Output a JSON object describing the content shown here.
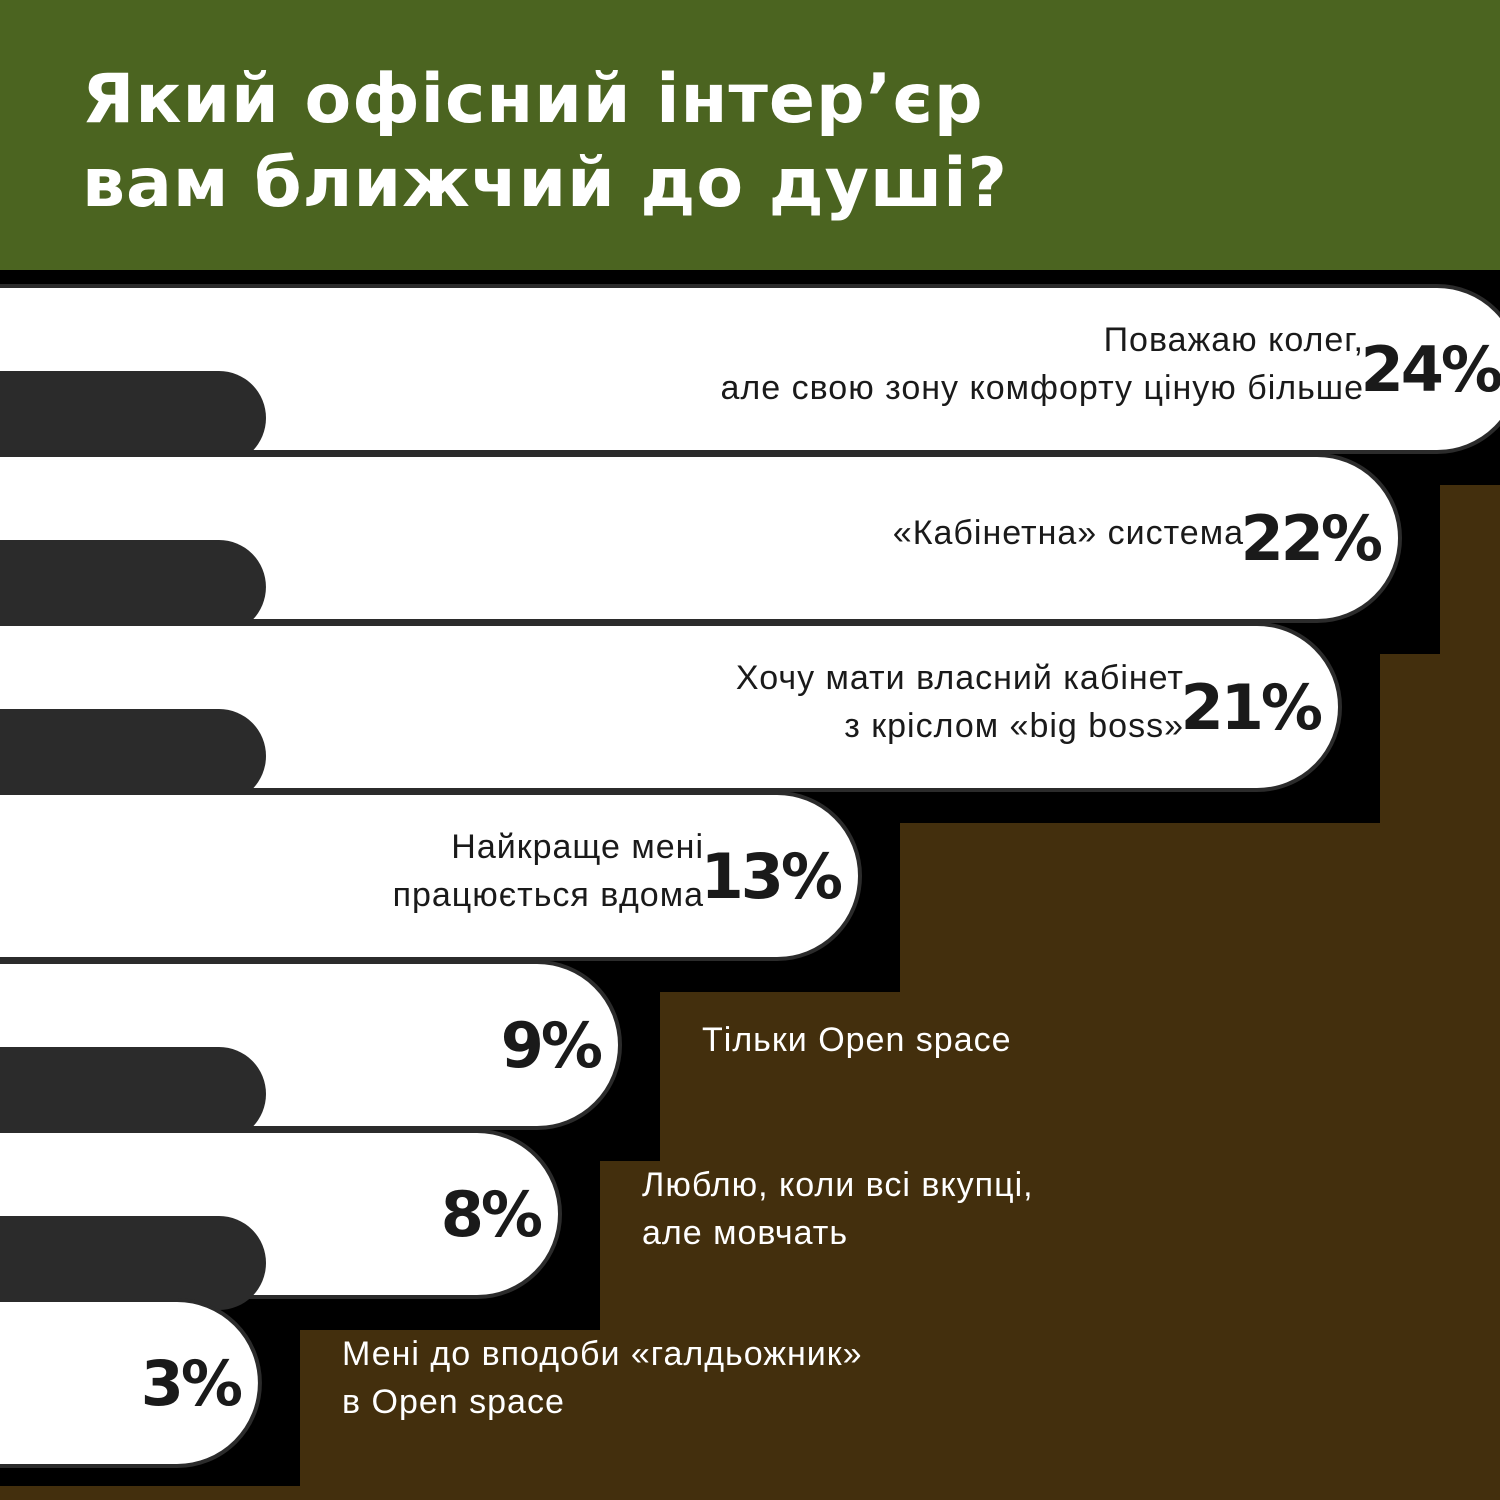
{
  "title_lines": [
    "Який офісний інтер’єр",
    "вам ближчий до душі?"
  ],
  "colors": {
    "header_bg": "#4b6420",
    "page_bg": "#432f0d",
    "bar_fill": "#ffffff",
    "bar_outline": "#2b2b2b",
    "shadow": "#000000",
    "tab": "#2b2b2b",
    "text_on_bar": "#1a1a1a",
    "text_on_bg": "#ffffff"
  },
  "chart_data": {
    "type": "bar",
    "orientation": "horizontal",
    "unit": "%",
    "items": [
      {
        "label_lines": [
          "Поважаю колег,",
          "але свою зону комфорту ціную більше"
        ],
        "value": 24,
        "value_label": "24%"
      },
      {
        "label_lines": [
          "«Кабінетна» система"
        ],
        "value": 22,
        "value_label": "22%"
      },
      {
        "label_lines": [
          "Хочу мати власний кабінет",
          "з кріслом «big boss»"
        ],
        "value": 21,
        "value_label": "21%"
      },
      {
        "label_lines": [
          "Найкраще мені",
          "працюється вдома"
        ],
        "value": 13,
        "value_label": "13%"
      },
      {
        "label_lines": [
          "Тільки Open space"
        ],
        "value": 9,
        "value_label": "9%"
      },
      {
        "label_lines": [
          "Люблю, коли всі вкупці,",
          "але мовчать"
        ],
        "value": 8,
        "value_label": "8%"
      },
      {
        "label_lines": [
          "Мені до вподоби «галдьожник»",
          "в Open space"
        ],
        "value": 3,
        "value_label": "3%"
      }
    ]
  }
}
